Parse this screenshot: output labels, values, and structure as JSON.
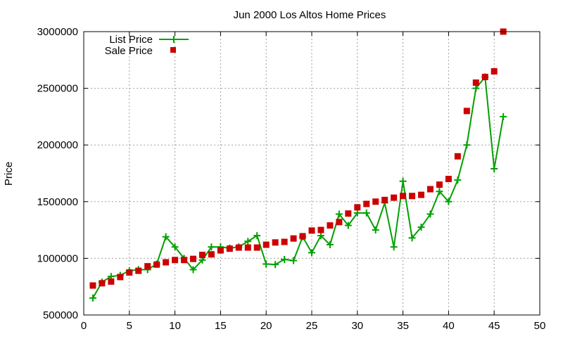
{
  "chart_data": {
    "type": "line",
    "title": "Jun 2000 Los Altos Home Prices",
    "xlabel": "",
    "ylabel": "Price",
    "xlim": [
      0,
      50
    ],
    "ylim": [
      500000,
      3000000
    ],
    "xticks": [
      0,
      5,
      10,
      15,
      20,
      25,
      30,
      35,
      40,
      45,
      50
    ],
    "yticks": [
      500000,
      1000000,
      1500000,
      2000000,
      2500000,
      3000000
    ],
    "grid": true,
    "legend_position": "top-left",
    "series": [
      {
        "name": "List Price",
        "style": "linespoints",
        "color": "#00a000",
        "x": [
          1,
          2,
          3,
          4,
          5,
          6,
          7,
          8,
          9,
          10,
          11,
          12,
          13,
          14,
          15,
          16,
          17,
          18,
          19,
          20,
          21,
          22,
          23,
          24,
          25,
          26,
          27,
          28,
          29,
          30,
          31,
          32,
          33,
          34,
          35,
          36,
          37,
          38,
          39,
          40,
          41,
          42,
          43,
          44,
          45,
          46
        ],
        "values": [
          650000,
          790000,
          840000,
          850000,
          890000,
          900000,
          900000,
          950000,
          1190000,
          1100000,
          1000000,
          900000,
          985000,
          1100000,
          1100000,
          1090000,
          1100000,
          1150000,
          1200000,
          950000,
          945000,
          990000,
          980000,
          1190000,
          1050000,
          1200000,
          1120000,
          1390000,
          1290000,
          1400000,
          1400000,
          1250000,
          1490000,
          1100000,
          1680000,
          1180000,
          1275000,
          1390000,
          1590000,
          1500000,
          1690000,
          2000000,
          2500000,
          2600000,
          1790000,
          2250000
        ]
      },
      {
        "name": "Sale Price",
        "style": "points",
        "color": "#cc0000",
        "x": [
          1,
          2,
          3,
          4,
          5,
          6,
          7,
          8,
          9,
          10,
          11,
          12,
          13,
          14,
          15,
          16,
          17,
          18,
          19,
          20,
          21,
          22,
          23,
          24,
          25,
          26,
          27,
          28,
          29,
          30,
          31,
          32,
          33,
          34,
          35,
          36,
          37,
          38,
          39,
          40,
          41,
          42,
          43,
          44,
          45,
          46
        ],
        "values": [
          760000,
          780000,
          795000,
          835000,
          875000,
          890000,
          930000,
          945000,
          965000,
          985000,
          985000,
          995000,
          1030000,
          1035000,
          1070000,
          1085000,
          1095000,
          1095000,
          1095000,
          1120000,
          1140000,
          1145000,
          1175000,
          1195000,
          1245000,
          1250000,
          1290000,
          1320000,
          1395000,
          1450000,
          1480000,
          1500000,
          1515000,
          1535000,
          1550000,
          1550000,
          1560000,
          1610000,
          1650000,
          1700000,
          1900000,
          2300000,
          2550000,
          2600000,
          2650000,
          3000000
        ]
      }
    ]
  }
}
